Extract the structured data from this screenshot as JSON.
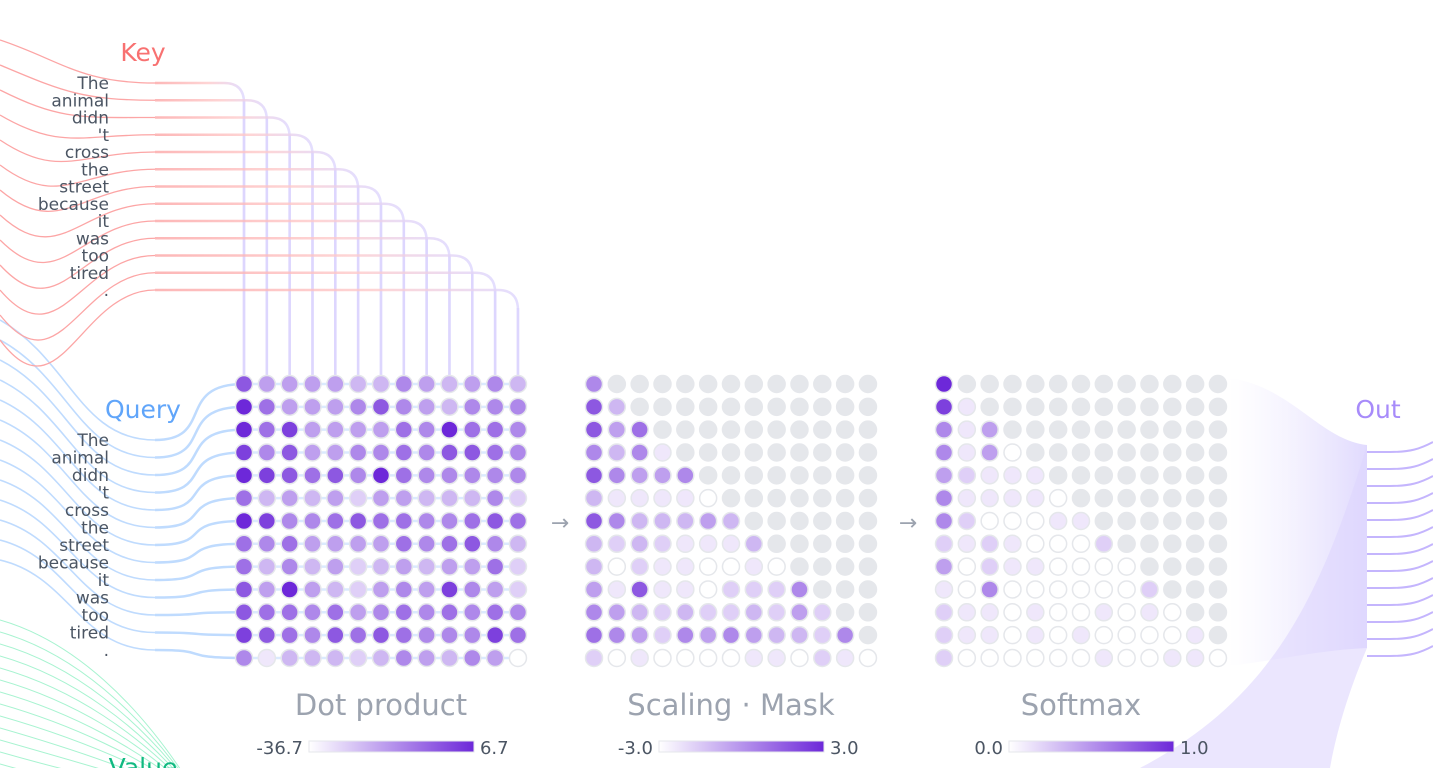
{
  "labels": {
    "key": "Key",
    "query": "Query",
    "value": "Value",
    "out": "Out"
  },
  "colors": {
    "key": "#f87171",
    "query": "#60a5fa",
    "value": "#10b981",
    "out": "#a78bfa",
    "cell_max": "#6d28d9",
    "masked": "#e5e7eb"
  },
  "tokens": [
    "The",
    "animal",
    "didn",
    "'t",
    "cross",
    "the",
    "street",
    "because",
    "it",
    "was",
    "too",
    "tired",
    "."
  ],
  "arrow_icon": "→",
  "matrices": [
    {
      "title": "Dot product",
      "legend_min": "-36.7",
      "legend_max": "6.7",
      "levels": [
        [
          7,
          4,
          4,
          4,
          4,
          3,
          3,
          5,
          4,
          3,
          4,
          5,
          3
        ],
        [
          9,
          6,
          4,
          4,
          4,
          5,
          7,
          5,
          4,
          3,
          5,
          5,
          5
        ],
        [
          9,
          6,
          8,
          4,
          4,
          4,
          4,
          6,
          5,
          9,
          6,
          6,
          5
        ],
        [
          8,
          5,
          7,
          4,
          4,
          5,
          5,
          6,
          5,
          7,
          7,
          6,
          5
        ],
        [
          9,
          8,
          7,
          6,
          7,
          5,
          9,
          6,
          5,
          5,
          5,
          5,
          5
        ],
        [
          6,
          3,
          4,
          3,
          4,
          2,
          4,
          4,
          3,
          3,
          3,
          5,
          2
        ],
        [
          9,
          8,
          5,
          5,
          6,
          7,
          6,
          6,
          5,
          5,
          6,
          7,
          6
        ],
        [
          6,
          5,
          6,
          4,
          4,
          4,
          4,
          6,
          5,
          6,
          7,
          5,
          3
        ],
        [
          6,
          3,
          5,
          3,
          4,
          2,
          3,
          4,
          3,
          4,
          4,
          6,
          2
        ],
        [
          7,
          4,
          9,
          4,
          3,
          2,
          4,
          5,
          4,
          8,
          5,
          4,
          2
        ],
        [
          7,
          6,
          6,
          5,
          6,
          4,
          5,
          6,
          5,
          6,
          5,
          6,
          5
        ],
        [
          8,
          7,
          6,
          5,
          7,
          6,
          7,
          6,
          5,
          5,
          5,
          8,
          6
        ],
        [
          5,
          1,
          3,
          3,
          3,
          2,
          3,
          5,
          4,
          3,
          5,
          4,
          0
        ]
      ]
    },
    {
      "title": "Scaling · Mask",
      "legend_min": "-3.0",
      "legend_max": "3.0",
      "levels": [
        [
          5
        ],
        [
          7,
          3
        ],
        [
          7,
          4,
          6
        ],
        [
          5,
          3,
          5,
          1
        ],
        [
          7,
          5,
          4,
          4,
          5
        ],
        [
          3,
          1,
          1,
          1,
          1,
          0
        ],
        [
          7,
          5,
          3,
          3,
          3,
          4,
          3
        ],
        [
          3,
          2,
          3,
          2,
          1,
          1,
          1,
          3
        ],
        [
          3,
          0,
          2,
          1,
          1,
          0,
          0,
          1,
          0
        ],
        [
          4,
          1,
          7,
          1,
          1,
          0,
          2,
          2,
          2,
          5
        ],
        [
          5,
          4,
          3,
          2,
          3,
          2,
          2,
          3,
          2,
          4,
          2
        ],
        [
          6,
          5,
          4,
          2,
          5,
          4,
          5,
          4,
          3,
          3,
          2,
          5
        ],
        [
          2,
          0,
          1,
          0,
          0,
          0,
          0,
          1,
          1,
          0,
          2,
          1,
          0
        ]
      ]
    },
    {
      "title": "Softmax",
      "legend_min": "0.0",
      "legend_max": "1.0",
      "levels": [
        [
          9
        ],
        [
          8,
          1
        ],
        [
          5,
          1,
          4
        ],
        [
          5,
          1,
          4,
          0
        ],
        [
          4,
          2,
          1,
          1,
          1
        ],
        [
          5,
          1,
          1,
          1,
          1,
          0
        ],
        [
          5,
          2,
          0,
          0,
          0,
          1,
          1
        ],
        [
          2,
          1,
          2,
          1,
          0,
          0,
          0,
          2
        ],
        [
          4,
          0,
          2,
          1,
          1,
          0,
          0,
          0,
          0
        ],
        [
          1,
          0,
          5,
          0,
          0,
          0,
          0,
          0,
          0,
          2
        ],
        [
          2,
          1,
          1,
          0,
          1,
          0,
          0,
          1,
          0,
          1,
          0
        ],
        [
          2,
          1,
          1,
          0,
          1,
          0,
          1,
          0,
          0,
          0,
          0,
          1
        ],
        [
          2,
          0,
          0,
          0,
          0,
          0,
          0,
          1,
          0,
          0,
          1,
          1,
          0
        ]
      ]
    }
  ]
}
